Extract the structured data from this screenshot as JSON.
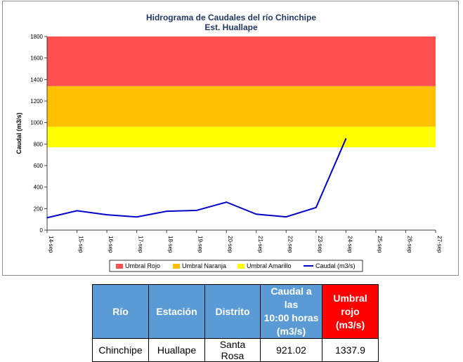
{
  "chart_data": {
    "type": "line",
    "title": "Hidrograma de Caudales del río Chinchipe",
    "subtitle": "Est. Huallape",
    "ylabel": "Caudal (m3/s)",
    "xlabel": "",
    "ylim": [
      0,
      1800
    ],
    "yticks": [
      0,
      200,
      400,
      600,
      800,
      1000,
      1200,
      1400,
      1600,
      1800
    ],
    "categories": [
      "14-sep",
      "15-sep",
      "16-sep",
      "17-sep",
      "18-sep",
      "19-sep",
      "20-sep",
      "21-sep",
      "22-sep",
      "23-sep",
      "24-sep",
      "25-sep",
      "26-sep",
      "27-sep"
    ],
    "bands": [
      {
        "name": "Umbral Rojo",
        "from": 1337.9,
        "to": 1800,
        "color": "#ff5050"
      },
      {
        "name": "Umbral Naranja",
        "from": 960,
        "to": 1337.9,
        "color": "#ffc000"
      },
      {
        "name": "Umbral Amarillo",
        "from": 770,
        "to": 960,
        "color": "#ffff00"
      }
    ],
    "series": [
      {
        "name": "Caudal (m3/s)",
        "color": "#0000cc",
        "values": [
          115,
          180,
          143,
          122,
          175,
          183,
          260,
          148,
          123,
          210,
          850,
          null,
          null,
          null
        ]
      }
    ],
    "legend": "bottom",
    "grid": false
  },
  "table": {
    "headers": [
      "Río",
      "Estación",
      "Distrito",
      "Caudal a las 10:00 horas (m3/s)",
      "Umbral rojo (m3/s)"
    ],
    "header_lines": [
      [
        "Río"
      ],
      [
        "Estación"
      ],
      [
        "Distrito"
      ],
      [
        "Caudal a las",
        "10:00 horas",
        "(m3/s)"
      ],
      [
        "Umbral",
        "rojo",
        "(m3/s)"
      ]
    ],
    "row": [
      "Chinchipe",
      "Huallape",
      "Santa Rosa",
      "921.02",
      "1337.9"
    ],
    "header_color": "#5b9bd5",
    "highlight_color": "#ff0000"
  }
}
